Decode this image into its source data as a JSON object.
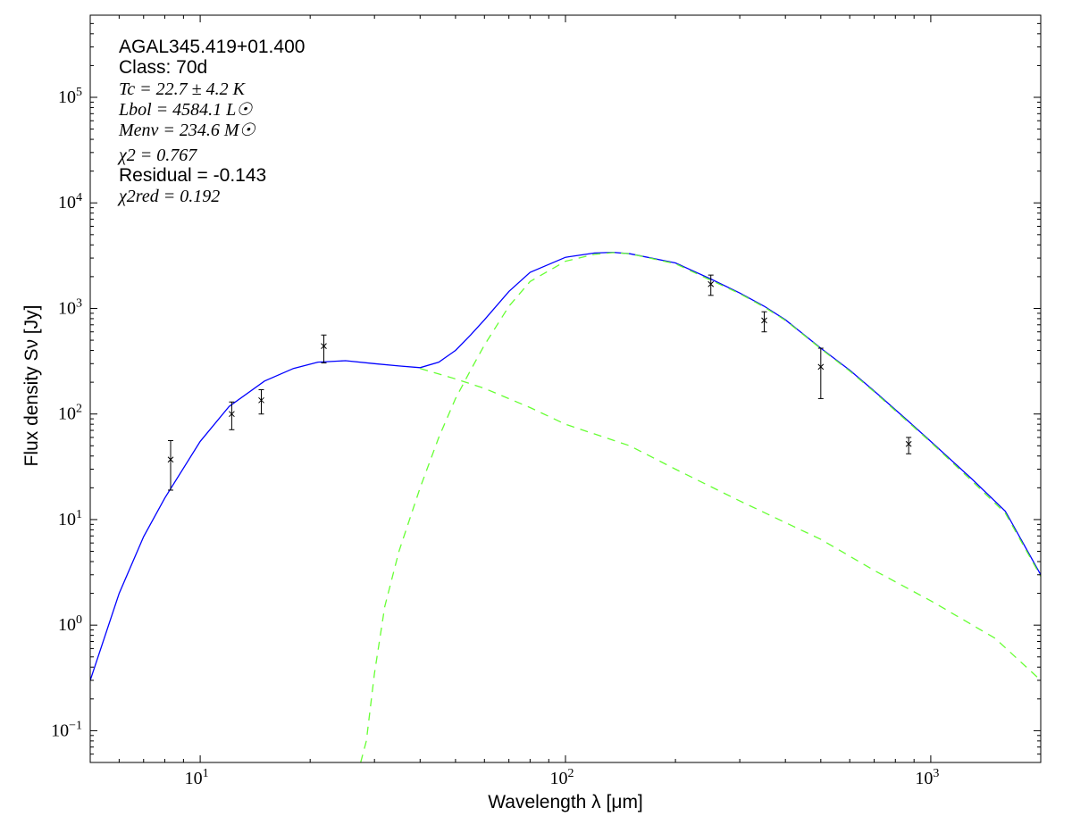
{
  "chart_data": {
    "type": "scatter",
    "xscale": "log",
    "yscale": "log",
    "xlim": [
      5,
      2000
    ],
    "ylim": [
      0.05,
      600000
    ],
    "xlabel": "Wavelength λ [μm]",
    "ylabel": "Flux density Sν [Jy]",
    "xticks": [
      {
        "value": 10,
        "label": "10",
        "exp": "1"
      },
      {
        "value": 100,
        "label": "10",
        "exp": "2"
      },
      {
        "value": 1000,
        "label": "10",
        "exp": "3"
      }
    ],
    "yticks": [
      {
        "value": 0.1,
        "label": "10",
        "exp": "−1"
      },
      {
        "value": 1,
        "label": "10",
        "exp": "0"
      },
      {
        "value": 10,
        "label": "10",
        "exp": "1"
      },
      {
        "value": 100,
        "label": "10",
        "exp": "2"
      },
      {
        "value": 1000,
        "label": "10",
        "exp": "3"
      },
      {
        "value": 10000,
        "label": "10",
        "exp": "4"
      },
      {
        "value": 100000,
        "label": "10",
        "exp": "5"
      }
    ],
    "annotations": {
      "source": "AGAL345.419+01.400",
      "class": "Class: 70d",
      "tc": "Tc = 22.7 ± 4.2 K",
      "lbol": "Lbol = 4584.1 L☉",
      "menv": "Menv = 234.6 M☉",
      "chi2": "χ2 = 0.767",
      "residual": "Residual = -0.143",
      "chi2red": "χ2red = 0.192"
    },
    "points": [
      {
        "x": 8.3,
        "y": 37,
        "ylo": 19,
        "yhi": 56
      },
      {
        "x": 12.2,
        "y": 100,
        "ylo": 71,
        "yhi": 130
      },
      {
        "x": 14.7,
        "y": 135,
        "ylo": 100,
        "yhi": 170
      },
      {
        "x": 21.8,
        "y": 440,
        "ylo": 305,
        "yhi": 560
      },
      {
        "x": 250,
        "y": 1700,
        "ylo": 1330,
        "yhi": 2070
      },
      {
        "x": 350,
        "y": 770,
        "ylo": 600,
        "yhi": 930
      },
      {
        "x": 500,
        "y": 280,
        "ylo": 140,
        "yhi": 420
      },
      {
        "x": 870,
        "y": 52,
        "ylo": 42,
        "yhi": 60
      }
    ],
    "series": [
      {
        "kind": "total-fit",
        "color": "#0000ff",
        "style": "solid",
        "x": [
          5,
          6,
          7,
          8,
          10,
          12,
          15,
          18,
          21,
          25,
          30,
          35,
          40,
          45,
          50,
          55,
          60,
          70,
          80,
          100,
          120,
          135,
          150,
          200,
          250,
          300,
          350,
          400,
          500,
          600,
          700,
          870,
          1000,
          1300,
          1600,
          2000
        ],
        "y": [
          0.3,
          2.0,
          6.9,
          16,
          55,
          118,
          205,
          270,
          310,
          320,
          300,
          285,
          275,
          310,
          400,
          560,
          780,
          1450,
          2200,
          3050,
          3350,
          3400,
          3300,
          2700,
          1900,
          1400,
          1050,
          780,
          420,
          260,
          165,
          85,
          55,
          24,
          12,
          3.0
        ]
      },
      {
        "kind": "warm-component",
        "color": "#66ff33",
        "style": "dashed",
        "x": [
          40,
          50,
          60,
          80,
          100,
          150,
          200,
          300,
          500,
          700,
          1000,
          1500,
          2000
        ],
        "y": [
          270,
          215,
          175,
          115,
          80,
          50,
          30,
          15,
          6.5,
          3.3,
          1.7,
          0.75,
          0.3
        ]
      },
      {
        "kind": "cold-component",
        "color": "#66ff33",
        "style": "dashed",
        "x": [
          27.5,
          28.5,
          30,
          32,
          35,
          40,
          45,
          50,
          55,
          60,
          70,
          80,
          100,
          120,
          135,
          150,
          200,
          250,
          300,
          350,
          400,
          500,
          600,
          700,
          870,
          1000,
          1300,
          1600,
          2000
        ],
        "y": [
          0.05,
          0.08,
          0.35,
          1.5,
          5,
          20,
          60,
          140,
          260,
          450,
          1050,
          1800,
          2800,
          3250,
          3380,
          3300,
          2650,
          1850,
          1380,
          1030,
          770,
          415,
          255,
          162,
          83,
          54,
          23,
          11.5,
          2.9
        ]
      }
    ]
  }
}
